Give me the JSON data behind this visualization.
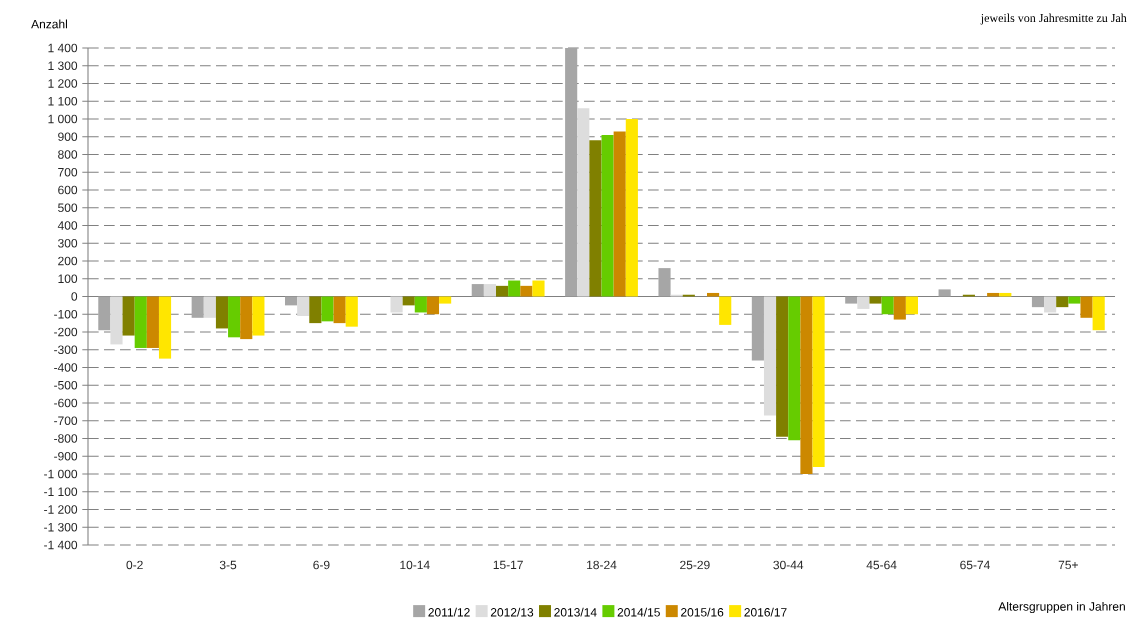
{
  "chart_data": {
    "type": "bar",
    "ylabel": "Anzahl",
    "xlabel": "Altersgruppen in Jahren",
    "annotations": [
      "jeweils von Jahresmitte zu Jah"
    ],
    "categories": [
      "0-2",
      "3-5",
      "6-9",
      "10-14",
      "15-17",
      "18-24",
      "25-29",
      "30-44",
      "45-64",
      "65-74",
      "75+"
    ],
    "series": [
      {
        "name": "2011/12",
        "color": "#a6a6a6",
        "values": [
          -190,
          -120,
          -50,
          0,
          70,
          1400,
          160,
          -360,
          -40,
          40,
          -60
        ]
      },
      {
        "name": "2012/13",
        "color": "#dddddd",
        "values": [
          -270,
          -120,
          -110,
          -90,
          70,
          1060,
          10,
          -670,
          -70,
          0,
          -90
        ]
      },
      {
        "name": "2013/14",
        "color": "#808000",
        "values": [
          -220,
          -180,
          -150,
          -50,
          60,
          880,
          10,
          -790,
          -40,
          10,
          -60
        ]
      },
      {
        "name": "2014/15",
        "color": "#66cc00",
        "values": [
          -290,
          -230,
          -140,
          -90,
          90,
          910,
          0,
          -810,
          -100,
          0,
          -40
        ]
      },
      {
        "name": "2015/16",
        "color": "#cc8800",
        "values": [
          -290,
          -240,
          -150,
          -100,
          60,
          930,
          20,
          -1000,
          -130,
          20,
          -120
        ]
      },
      {
        "name": "2016/17",
        "color": "#ffe600",
        "values": [
          -350,
          -220,
          -170,
          -40,
          90,
          1000,
          -160,
          -960,
          -100,
          20,
          -190
        ]
      }
    ],
    "ylim": [
      -1400,
      1400
    ],
    "yticks": [
      {
        "value": -1400,
        "label": "-1 400"
      },
      {
        "value": -1300,
        "label": "-1 300"
      },
      {
        "value": -1200,
        "label": "-1 200"
      },
      {
        "value": -1100,
        "label": "-1 100"
      },
      {
        "value": -1000,
        "label": "-1 000"
      },
      -900,
      -800,
      -700,
      -600,
      -500,
      -400,
      -300,
      -200,
      -100,
      0,
      100,
      200,
      300,
      400,
      500,
      600,
      700,
      800,
      900,
      {
        "value": 1000,
        "label": "1 000"
      },
      {
        "value": 1100,
        "label": "1 100"
      },
      {
        "value": 1200,
        "label": "1 200"
      },
      {
        "value": 1300,
        "label": "1 300"
      },
      {
        "value": 1400,
        "label": "1 400"
      }
    ],
    "grid": "y",
    "legend": "bottom"
  }
}
